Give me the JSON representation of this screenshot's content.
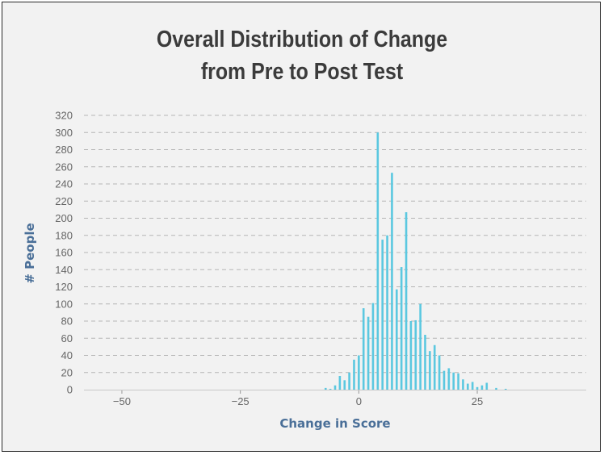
{
  "chart_data": {
    "type": "bar",
    "title_line1": "Overall Distribution of Change",
    "title_line2": "from Pre to Post Test",
    "xlabel": "Change in Score",
    "ylabel": "# People",
    "xlim": [
      -58,
      48
    ],
    "ylim": [
      0,
      320
    ],
    "xticks": [
      -50,
      -25,
      0,
      25
    ],
    "xtick_labels": [
      "−50",
      "−25",
      "0",
      "25"
    ],
    "yticks": [
      0,
      20,
      40,
      60,
      80,
      100,
      120,
      140,
      160,
      180,
      200,
      220,
      240,
      260,
      280,
      300,
      320
    ],
    "grid": true,
    "bar_color": "#5bc8e0",
    "x": [
      -7,
      -6,
      -5,
      -4,
      -3,
      -2,
      -1,
      0,
      1,
      2,
      3,
      4,
      5,
      6,
      7,
      8,
      9,
      10,
      11,
      12,
      13,
      14,
      15,
      16,
      17,
      18,
      19,
      20,
      21,
      22,
      23,
      24,
      25,
      26,
      27,
      29,
      31
    ],
    "values": [
      2,
      1,
      5,
      16,
      11,
      20,
      35,
      40,
      95,
      85,
      101,
      300,
      175,
      180,
      253,
      117,
      143,
      207,
      80,
      81,
      100,
      64,
      45,
      52,
      40,
      22,
      25,
      20,
      19,
      12,
      7,
      9,
      3,
      5,
      8,
      2,
      1
    ]
  }
}
